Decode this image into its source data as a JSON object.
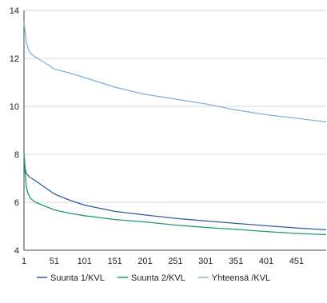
{
  "chart_data": {
    "type": "line",
    "title": "",
    "xlabel": "",
    "ylabel": "",
    "xlim": [
      1,
      500
    ],
    "ylim": [
      4,
      14
    ],
    "grid": "horizontal",
    "legend_position": "bottom",
    "y_ticks": [
      4,
      6,
      8,
      10,
      12,
      14
    ],
    "y_tick_labels": [
      "4",
      "6",
      "8",
      "10",
      "12",
      "14"
    ],
    "x_ticks": [
      1,
      51,
      101,
      151,
      201,
      251,
      301,
      351,
      401,
      451
    ],
    "x_tick_labels": [
      "1",
      "51",
      "101",
      "151",
      "201",
      "251",
      "301",
      "351",
      "401",
      "451"
    ],
    "series": [
      {
        "name": "Suunta 1/KVL",
        "color": "#2f5d9e",
        "x": [
          1,
          3,
          5,
          10,
          20,
          30,
          51,
          75,
          101,
          151,
          201,
          251,
          301,
          351,
          401,
          451,
          500
        ],
        "y": [
          8.0,
          7.4,
          7.2,
          7.05,
          6.9,
          6.72,
          6.35,
          6.1,
          5.88,
          5.62,
          5.47,
          5.33,
          5.22,
          5.12,
          5.02,
          4.93,
          4.85
        ]
      },
      {
        "name": "Suunta 2/KVL",
        "color": "#1e9a6f",
        "x": [
          1,
          3,
          5,
          8,
          12,
          20,
          30,
          51,
          75,
          101,
          151,
          201,
          251,
          301,
          351,
          401,
          451,
          500
        ],
        "y": [
          8.1,
          7.2,
          6.6,
          6.35,
          6.15,
          6.0,
          5.9,
          5.68,
          5.55,
          5.44,
          5.28,
          5.18,
          5.05,
          4.95,
          4.87,
          4.78,
          4.7,
          4.65
        ]
      },
      {
        "name": "Yhteensä /KVL",
        "color": "#7cb2e0",
        "x": [
          1,
          3,
          5,
          8,
          12,
          20,
          30,
          40,
          51,
          75,
          101,
          151,
          201,
          251,
          301,
          351,
          401,
          451,
          500
        ],
        "y": [
          13.5,
          13.1,
          12.65,
          12.4,
          12.2,
          12.05,
          11.9,
          11.75,
          11.55,
          11.4,
          11.2,
          10.8,
          10.5,
          10.3,
          10.1,
          9.85,
          9.65,
          9.5,
          9.35
        ]
      }
    ]
  }
}
